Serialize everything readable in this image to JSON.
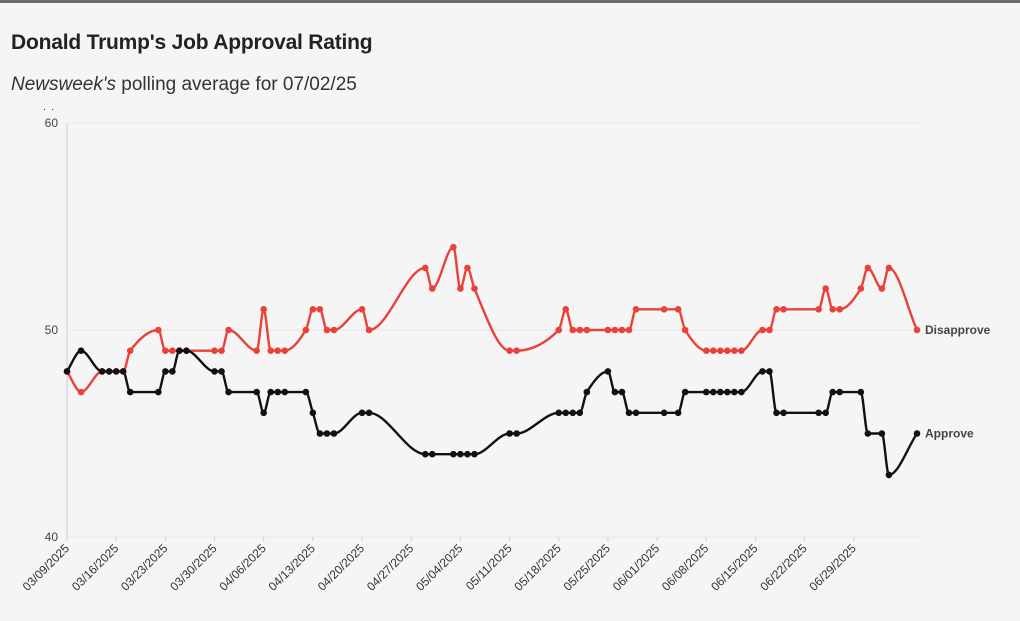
{
  "title": "Donald Trump's Job Approval Rating",
  "subtitle_italic": "Newsweek's",
  "subtitle_rest": " polling average for 07/02/25",
  "colors": {
    "approve": "#111111",
    "disapprove": "#e8423a",
    "grid": "#e6e6e6",
    "axis": "#cccccc"
  },
  "chart_data": {
    "type": "line",
    "title": "Donald Trump's Job Approval Rating",
    "xlabel": "",
    "ylabel": "",
    "ylim": [
      40,
      60
    ],
    "yticks": [
      40,
      50,
      60
    ],
    "xlim": [
      "2025-03-09",
      "2025-07-02"
    ],
    "xtick_labels": [
      "03/09/2025",
      "03/16/2025",
      "03/23/2025",
      "03/30/2025",
      "04/06/2025",
      "04/13/2025",
      "04/20/2025",
      "04/27/2025",
      "05/04/2025",
      "05/11/2025",
      "05/18/2025",
      "05/25/2025",
      "06/01/2025",
      "06/08/2025",
      "06/15/2025",
      "06/22/2025",
      "06/29/2025"
    ],
    "grid": "horizontal",
    "series": [
      {
        "name": "Disapprove",
        "color": "#e8423a",
        "points": [
          [
            "2025-03-09",
            48
          ],
          [
            "2025-03-11",
            47
          ],
          [
            "2025-03-14",
            48
          ],
          [
            "2025-03-15",
            48
          ],
          [
            "2025-03-16",
            48
          ],
          [
            "2025-03-17",
            48
          ],
          [
            "2025-03-18",
            49
          ],
          [
            "2025-03-22",
            50
          ],
          [
            "2025-03-23",
            49
          ],
          [
            "2025-03-24",
            49
          ],
          [
            "2025-03-25",
            49
          ],
          [
            "2025-03-26",
            49
          ],
          [
            "2025-03-30",
            49
          ],
          [
            "2025-03-31",
            49
          ],
          [
            "2025-04-01",
            50
          ],
          [
            "2025-04-05",
            49
          ],
          [
            "2025-04-06",
            51
          ],
          [
            "2025-04-07",
            49
          ],
          [
            "2025-04-08",
            49
          ],
          [
            "2025-04-09",
            49
          ],
          [
            "2025-04-12",
            50
          ],
          [
            "2025-04-13",
            51
          ],
          [
            "2025-04-14",
            51
          ],
          [
            "2025-04-15",
            50
          ],
          [
            "2025-04-16",
            50
          ],
          [
            "2025-04-20",
            51
          ],
          [
            "2025-04-21",
            50
          ],
          [
            "2025-04-29",
            53
          ],
          [
            "2025-04-30",
            52
          ],
          [
            "2025-05-03",
            54
          ],
          [
            "2025-05-04",
            52
          ],
          [
            "2025-05-05",
            53
          ],
          [
            "2025-05-06",
            52
          ],
          [
            "2025-05-11",
            49
          ],
          [
            "2025-05-12",
            49
          ],
          [
            "2025-05-18",
            50
          ],
          [
            "2025-05-19",
            51
          ],
          [
            "2025-05-20",
            50
          ],
          [
            "2025-05-21",
            50
          ],
          [
            "2025-05-22",
            50
          ],
          [
            "2025-05-25",
            50
          ],
          [
            "2025-05-26",
            50
          ],
          [
            "2025-05-27",
            50
          ],
          [
            "2025-05-28",
            50
          ],
          [
            "2025-05-29",
            51
          ],
          [
            "2025-06-02",
            51
          ],
          [
            "2025-06-04",
            51
          ],
          [
            "2025-06-05",
            50
          ],
          [
            "2025-06-08",
            49
          ],
          [
            "2025-06-09",
            49
          ],
          [
            "2025-06-10",
            49
          ],
          [
            "2025-06-11",
            49
          ],
          [
            "2025-06-12",
            49
          ],
          [
            "2025-06-13",
            49
          ],
          [
            "2025-06-16",
            50
          ],
          [
            "2025-06-17",
            50
          ],
          [
            "2025-06-18",
            51
          ],
          [
            "2025-06-19",
            51
          ],
          [
            "2025-06-24",
            51
          ],
          [
            "2025-06-25",
            52
          ],
          [
            "2025-06-26",
            51
          ],
          [
            "2025-06-27",
            51
          ],
          [
            "2025-06-30",
            52
          ],
          [
            "2025-07-01",
            53
          ],
          [
            "2025-07-03",
            52
          ],
          [
            "2025-07-04",
            53
          ],
          [
            "2025-07-08",
            50
          ]
        ]
      },
      {
        "name": "Approve",
        "color": "#111111",
        "points": [
          [
            "2025-03-09",
            48
          ],
          [
            "2025-03-11",
            49
          ],
          [
            "2025-03-14",
            48
          ],
          [
            "2025-03-15",
            48
          ],
          [
            "2025-03-16",
            48
          ],
          [
            "2025-03-17",
            48
          ],
          [
            "2025-03-18",
            47
          ],
          [
            "2025-03-22",
            47
          ],
          [
            "2025-03-23",
            48
          ],
          [
            "2025-03-24",
            48
          ],
          [
            "2025-03-25",
            49
          ],
          [
            "2025-03-26",
            49
          ],
          [
            "2025-03-30",
            48
          ],
          [
            "2025-03-31",
            48
          ],
          [
            "2025-04-01",
            47
          ],
          [
            "2025-04-05",
            47
          ],
          [
            "2025-04-06",
            46
          ],
          [
            "2025-04-07",
            47
          ],
          [
            "2025-04-08",
            47
          ],
          [
            "2025-04-09",
            47
          ],
          [
            "2025-04-12",
            47
          ],
          [
            "2025-04-13",
            46
          ],
          [
            "2025-04-14",
            45
          ],
          [
            "2025-04-15",
            45
          ],
          [
            "2025-04-16",
            45
          ],
          [
            "2025-04-20",
            46
          ],
          [
            "2025-04-21",
            46
          ],
          [
            "2025-04-29",
            44
          ],
          [
            "2025-04-30",
            44
          ],
          [
            "2025-05-03",
            44
          ],
          [
            "2025-05-04",
            44
          ],
          [
            "2025-05-05",
            44
          ],
          [
            "2025-05-06",
            44
          ],
          [
            "2025-05-11",
            45
          ],
          [
            "2025-05-12",
            45
          ],
          [
            "2025-05-18",
            46
          ],
          [
            "2025-05-19",
            46
          ],
          [
            "2025-05-20",
            46
          ],
          [
            "2025-05-21",
            46
          ],
          [
            "2025-05-22",
            47
          ],
          [
            "2025-05-25",
            48
          ],
          [
            "2025-05-26",
            47
          ],
          [
            "2025-05-27",
            47
          ],
          [
            "2025-05-28",
            46
          ],
          [
            "2025-05-29",
            46
          ],
          [
            "2025-06-02",
            46
          ],
          [
            "2025-06-04",
            46
          ],
          [
            "2025-06-05",
            47
          ],
          [
            "2025-06-08",
            47
          ],
          [
            "2025-06-09",
            47
          ],
          [
            "2025-06-10",
            47
          ],
          [
            "2025-06-11",
            47
          ],
          [
            "2025-06-12",
            47
          ],
          [
            "2025-06-13",
            47
          ],
          [
            "2025-06-16",
            48
          ],
          [
            "2025-06-17",
            48
          ],
          [
            "2025-06-18",
            46
          ],
          [
            "2025-06-19",
            46
          ],
          [
            "2025-06-24",
            46
          ],
          [
            "2025-06-25",
            46
          ],
          [
            "2025-06-26",
            47
          ],
          [
            "2025-06-27",
            47
          ],
          [
            "2025-06-30",
            47
          ],
          [
            "2025-07-01",
            45
          ],
          [
            "2025-07-03",
            45
          ],
          [
            "2025-07-04",
            43
          ],
          [
            "2025-07-08",
            45
          ]
        ]
      }
    ]
  }
}
